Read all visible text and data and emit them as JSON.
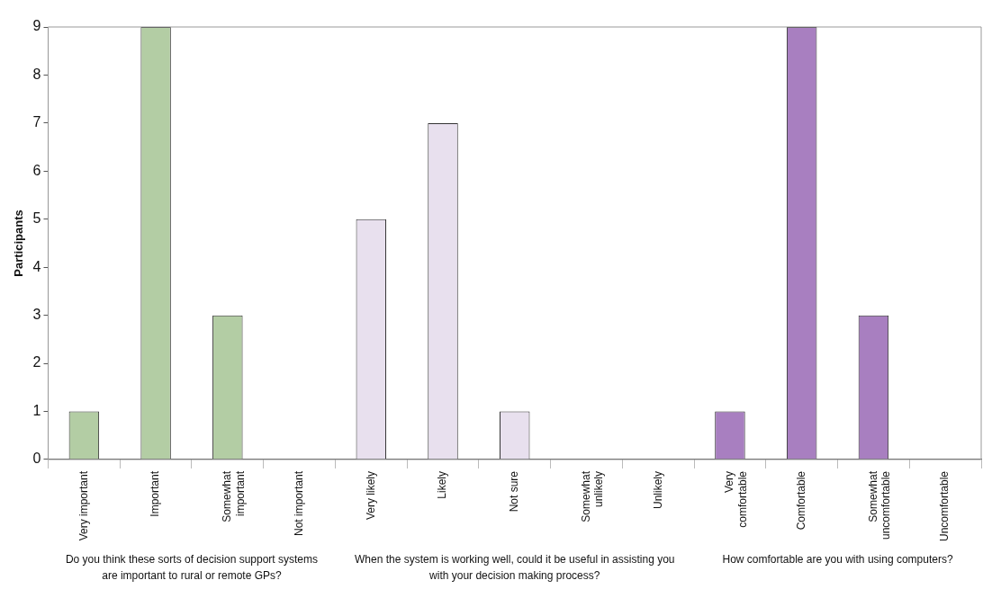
{
  "chart_data": {
    "type": "bar",
    "ylabel": "Participants",
    "categories": [
      "Very important",
      "Important",
      "Somewhat important",
      "Not important",
      "Very likely",
      "Likely",
      "Not sure",
      "Somewhat unlikely",
      "Unlikely",
      "Very comfortable",
      "Comfortable",
      "Somewhat uncomfortable",
      "Uncomfortable"
    ],
    "series": [
      {
        "color": "#b3cda4",
        "values": [
          1,
          9,
          3,
          0,
          null,
          null,
          null,
          null,
          null,
          null,
          null,
          null,
          null
        ]
      },
      {
        "color": "#e8e0ee",
        "values": [
          null,
          null,
          null,
          null,
          5,
          7,
          1,
          0,
          0,
          null,
          null,
          null,
          null
        ]
      },
      {
        "color": "#a87fc0",
        "values": [
          null,
          null,
          null,
          null,
          null,
          null,
          null,
          null,
          null,
          1,
          9,
          3,
          0
        ]
      }
    ],
    "ylim": [
      0,
      9
    ],
    "yticks": [
      0,
      1,
      2,
      3,
      4,
      5,
      6,
      7,
      8,
      9
    ],
    "grid": false,
    "legend": false,
    "annotations": [
      "Do you think these sorts of decision support systems are important to rural or remote GPs?",
      "When the system is working well, could it be useful in assisting you with your decision making process?",
      "How comfortable are you with using computers?"
    ]
  }
}
